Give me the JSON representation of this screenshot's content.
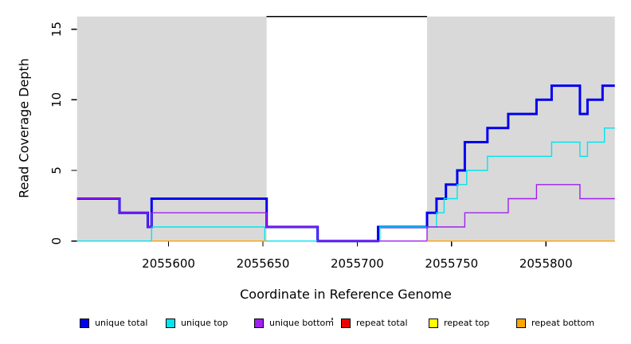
{
  "figure": {
    "y_axis": {
      "title": "Read Coverage Depth",
      "ticks": [
        0,
        5,
        10,
        15
      ],
      "range": [
        0,
        15.9
      ]
    },
    "x_axis": {
      "title": "Coordinate in Reference Genome",
      "ticks": [
        2055600,
        2055650,
        2055700,
        2055750,
        2055800
      ],
      "range": [
        2055551.5,
        2055836.5
      ]
    }
  },
  "chart_data": {
    "type": "line",
    "title": "",
    "xlabel": "Coordinate in Reference Genome",
    "ylabel": "Read Coverage Depth",
    "xlim": [
      2055551.5,
      2055836.5
    ],
    "ylim": [
      0,
      15.9
    ],
    "grid": false,
    "legend_position": "bottom",
    "line_style": "step",
    "shaded_regions": [
      {
        "start": 2055551.5,
        "end": 2055652,
        "color": "#D9D9D9"
      },
      {
        "start": 2055737,
        "end": 2055836.5,
        "color": "#D9D9D9"
      }
    ],
    "gap_top_border_color": "#000000",
    "series": [
      {
        "name": "unique total",
        "color": "#0000EE",
        "width": 3,
        "segments": [
          {
            "steps": [
              [
                2055551.5,
                3
              ],
              [
                2055574,
                2
              ],
              [
                2055589,
                1
              ],
              [
                2055591,
                3
              ],
              [
                2055652,
                1
              ],
              [
                2055679,
                0
              ],
              [
                2055711,
                1
              ],
              [
                2055737,
                2
              ],
              [
                2055742,
                3
              ],
              [
                2055747,
                4
              ],
              [
                2055753,
                5
              ],
              [
                2055757,
                7
              ],
              [
                2055769,
                8
              ],
              [
                2055780,
                9
              ],
              [
                2055795,
                10
              ],
              [
                2055803,
                11
              ],
              [
                2055818,
                9
              ],
              [
                2055822,
                10
              ],
              [
                2055830,
                11
              ]
            ],
            "end": 2055836.5
          }
        ]
      },
      {
        "name": "unique top",
        "color": "#00E5EE",
        "width": 1.4,
        "segments": [
          {
            "steps": [
              [
                2055551.5,
                0
              ],
              [
                2055591,
                1
              ],
              [
                2055651,
                0
              ],
              [
                2055712,
                1
              ],
              [
                2055742,
                2
              ],
              [
                2055746,
                3
              ],
              [
                2055753,
                4
              ],
              [
                2055758,
                5
              ],
              [
                2055769,
                6
              ],
              [
                2055803,
                7
              ],
              [
                2055818,
                6
              ],
              [
                2055822,
                7
              ],
              [
                2055831,
                8
              ]
            ],
            "end": 2055836.5
          }
        ]
      },
      {
        "name": "unique bottom",
        "color": "#A020F0",
        "width": 1.4,
        "segments": [
          {
            "steps": [
              [
                2055551.5,
                3
              ],
              [
                2055574,
                2
              ],
              [
                2055589,
                1
              ],
              [
                2055591,
                2
              ],
              [
                2055652,
                1
              ],
              [
                2055679,
                0
              ],
              [
                2055737,
                1
              ],
              [
                2055757,
                2
              ],
              [
                2055780,
                3
              ],
              [
                2055795,
                4
              ],
              [
                2055818,
                3
              ]
            ],
            "end": 2055836.5
          }
        ]
      },
      {
        "name": "repeat total",
        "color": "#EE0000",
        "width": 1.4,
        "segments": [
          {
            "steps": [
              [
                2055591,
                0
              ]
            ],
            "end": 2055652
          },
          {
            "steps": [
              [
                2055737,
                0
              ]
            ],
            "end": 2055836.5
          }
        ]
      },
      {
        "name": "repeat top",
        "color": "#FFFF00",
        "width": 1.4,
        "segments": [
          {
            "steps": [
              [
                2055591,
                0
              ]
            ],
            "end": 2055652
          },
          {
            "steps": [
              [
                2055737,
                0
              ]
            ],
            "end": 2055836.5
          }
        ]
      },
      {
        "name": "repeat bottom",
        "color": "#FFA500",
        "width": 1.4,
        "segments": [
          {
            "steps": [
              [
                2055591,
                0
              ]
            ],
            "end": 2055652
          },
          {
            "steps": [
              [
                2055737,
                0
              ]
            ],
            "end": 2055836.5
          }
        ]
      }
    ]
  },
  "legend": {
    "items": [
      {
        "label": "unique total",
        "color": "#0000EE"
      },
      {
        "label": "unique top",
        "color": "#00E5EE"
      },
      {
        "label": "unique bottom",
        "color": "#A020F0"
      },
      {
        "label": "repeat total",
        "color": "#EE0000"
      },
      {
        "label": "repeat top",
        "color": "#FFFF00"
      },
      {
        "label": "repeat bottom",
        "color": "#FFA500"
      }
    ]
  },
  "colors": {
    "background": "#FFFFFF",
    "region_shading": "#D9D9D9",
    "axis": "#000000",
    "text": "#000000"
  }
}
